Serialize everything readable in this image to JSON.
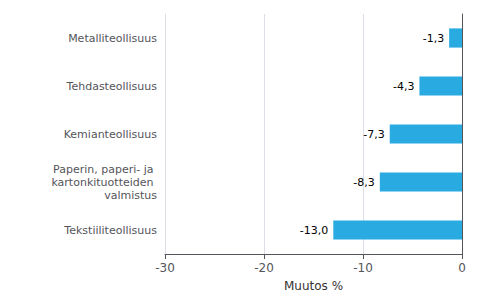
{
  "chart_data": {
    "type": "bar",
    "orientation": "horizontal",
    "categories": [
      "Tekstiiliteollisuus",
      "Paperin, paperi- ja kartonkituotteiden valmistus",
      "Kemianteollisuus",
      "Tehdasteollisuus",
      "Metalliteollisuus"
    ],
    "values": [
      -13.0,
      -8.3,
      -7.3,
      -4.3,
      -1.3
    ],
    "value_labels": [
      "-13,0",
      "-8,3",
      "-7,3",
      "-4,3",
      "-1,3"
    ],
    "data_labels": true,
    "color": "#29abe2",
    "xlabel": "Muutos %",
    "xlim": [
      -30,
      0
    ],
    "xticks": [
      -30,
      -20,
      -10,
      0
    ],
    "grid": true
  }
}
